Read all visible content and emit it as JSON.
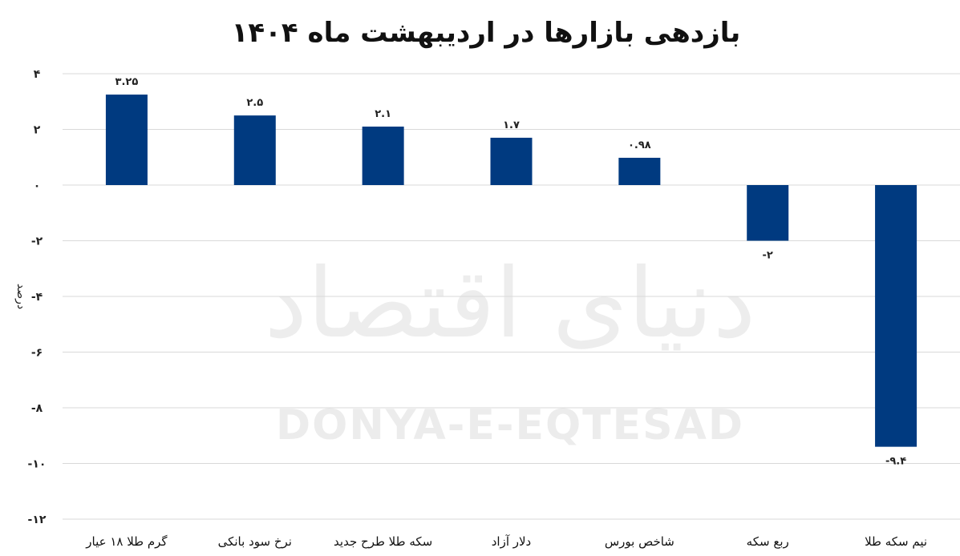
{
  "chart_data": {
    "type": "bar",
    "title": "بازدهی بازارها در اردیبهشت ماه ۱۴۰۴",
    "ylabel": "درصد",
    "xlabel": "",
    "categories": [
      "گرم طلا ۱۸ عیار",
      "نرخ سود بانکی",
      "سکه طلا طرح جدید",
      "دلار آزاد",
      "شاخص بورس",
      "ربع سکه",
      "نیم سکه طلا"
    ],
    "values": [
      3.25,
      2.5,
      2.1,
      1.7,
      0.98,
      -2,
      -9.4
    ],
    "value_labels": [
      "۳.۲۵",
      "۲.۵",
      "۲.۱",
      "۱.۷",
      "۰.۹۸",
      "-۲",
      "-۹.۴"
    ],
    "ylim": [
      -12,
      4
    ],
    "yticks": [
      4,
      2,
      0,
      -2,
      -4,
      -6,
      -8,
      -10,
      -12
    ],
    "ytick_labels": [
      "۴",
      "۲",
      "۰",
      "-۲",
      "-۴",
      "-۶",
      "-۸",
      "-۱۰",
      "-۱۲"
    ],
    "grid": true,
    "colors": {
      "bar": "#003a80",
      "grid": "#d9d9d9"
    }
  },
  "watermark": {
    "fa": "دنیای اقتصاد",
    "en": "DONYA-E-EQTESAD"
  }
}
